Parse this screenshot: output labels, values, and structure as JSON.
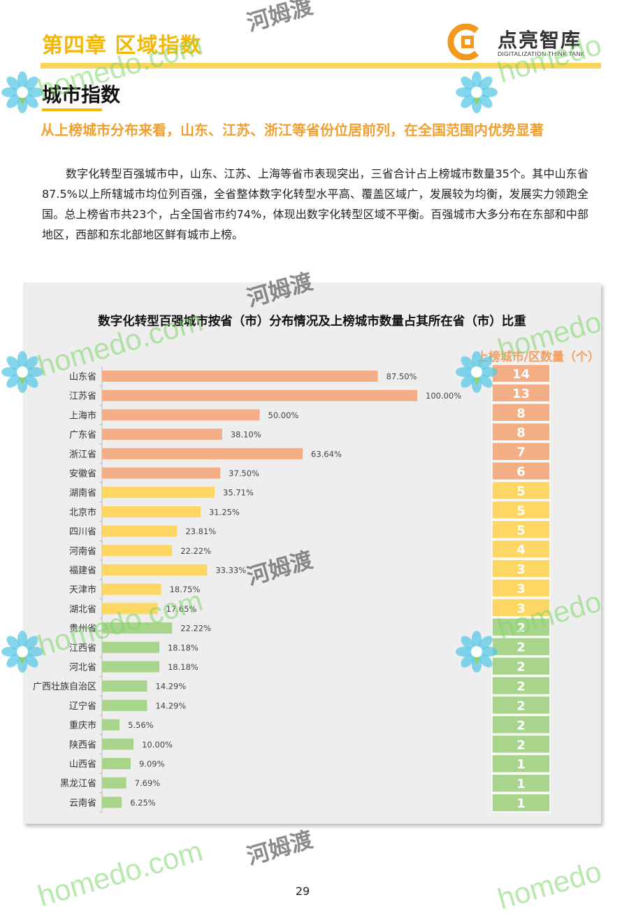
{
  "header": {
    "chapter_title": "第四章  区域指数",
    "brand_name": "点亮智库",
    "brand_subtitle": "DIGITALIZATION THINK TANK"
  },
  "section": {
    "title": "城市指数",
    "headline": "从上榜城市分布来看，山东、江苏、浙江等省份位居前列，在全国范围内优势显著",
    "body": "数字化转型百强城市中，山东、江苏、上海等省市表现突出，三省合计占上榜城市数量35个。其中山东省87.5%以上所辖城市均位列百强，全省整体数字化转型水平高、覆盖区域广，发展较为均衡，发展实力领跑全国。总上榜省市共23个，占全国省市约74%，体现出数字化转型区域不平衡。百强城市大多分布在东部和中部地区，西部和东北部地区鲜有城市上榜。"
  },
  "chart_data": {
    "type": "bar",
    "orientation": "horizontal",
    "title": "数字化转型百强城市按省（市）分布情况及上榜城市数量占其所在省（市）比重",
    "count_column_header": "上榜城市/区数量（个）",
    "categories": [
      "山东省",
      "江苏省",
      "上海市",
      "广东省",
      "浙江省",
      "安徽省",
      "湖南省",
      "北京市",
      "四川省",
      "河南省",
      "福建省",
      "天津市",
      "湖北省",
      "贵州省",
      "江西省",
      "河北省",
      "广西壮族自治区",
      "辽宁省",
      "重庆市",
      "陕西省",
      "山西省",
      "黑龙江省",
      "云南省"
    ],
    "values": [
      87.5,
      100.0,
      50.0,
      38.1,
      63.64,
      37.5,
      35.71,
      31.25,
      23.81,
      22.22,
      33.33,
      18.75,
      17.65,
      22.22,
      18.18,
      18.18,
      14.29,
      14.29,
      5.56,
      10.0,
      9.09,
      7.69,
      6.25
    ],
    "value_labels": [
      "87.50%",
      "100.00%",
      "50.00%",
      "38.10%",
      "63.64%",
      "37.50%",
      "35.71%",
      "31.25%",
      "23.81%",
      "22.22%",
      "33.33%",
      "18.75%",
      "17.65%",
      "22.22%",
      "18.18%",
      "18.18%",
      "14.29%",
      "14.29%",
      "5.56%",
      "10.00%",
      "9.09%",
      "7.69%",
      "6.25%"
    ],
    "counts": [
      14,
      13,
      8,
      8,
      7,
      6,
      5,
      5,
      5,
      4,
      3,
      3,
      3,
      2,
      2,
      2,
      2,
      2,
      2,
      2,
      1,
      1,
      1
    ],
    "xlim": [
      0,
      100
    ],
    "colors": {
      "high": "#f4ae86",
      "mid": "#fdd663",
      "low": "#a8d48c"
    },
    "group_of_each": [
      "high",
      "high",
      "high",
      "high",
      "high",
      "high",
      "mid",
      "mid",
      "mid",
      "mid",
      "mid",
      "mid",
      "mid",
      "low",
      "low",
      "low",
      "low",
      "low",
      "low",
      "low",
      "low",
      "low",
      "low"
    ]
  },
  "watermark": {
    "brand": "homedo",
    "site": "homedo.com",
    "cn": "河姆渡"
  },
  "page_number": "29"
}
